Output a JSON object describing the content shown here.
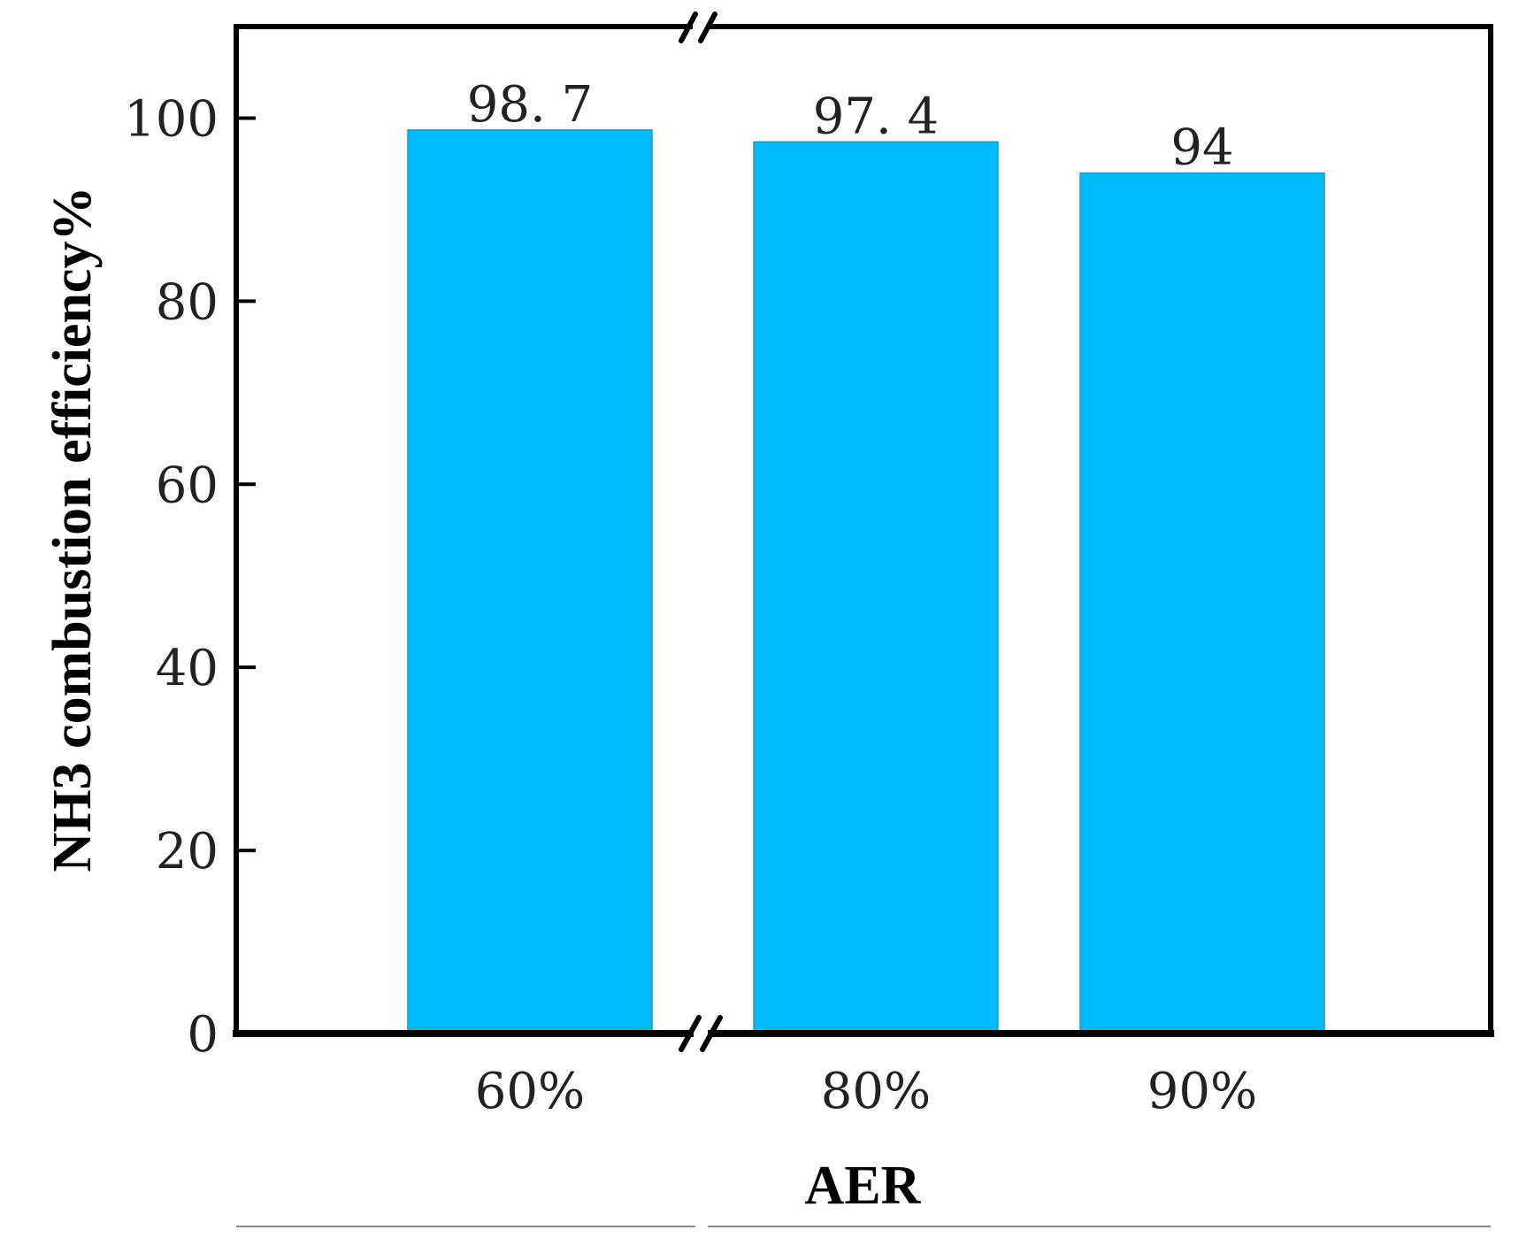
{
  "chart_data": {
    "type": "bar",
    "categories": [
      "60%",
      "80%",
      "90%"
    ],
    "values": [
      98.7,
      97.4,
      94
    ],
    "value_labels": [
      "98. 7",
      "97. 4",
      "94"
    ],
    "xlabel": "AER",
    "ylabel": "NH3 combustion efficiency%",
    "ylim": [
      0,
      110
    ],
    "yticks": [
      0,
      20,
      40,
      60,
      80,
      100
    ],
    "axis_break": "between 60% and 80% on x-axis",
    "grid": false,
    "legend": "none",
    "bar_color": "#00bbf9",
    "bar_edge_color": "#3a8fb0",
    "axis_color": "#000000"
  }
}
